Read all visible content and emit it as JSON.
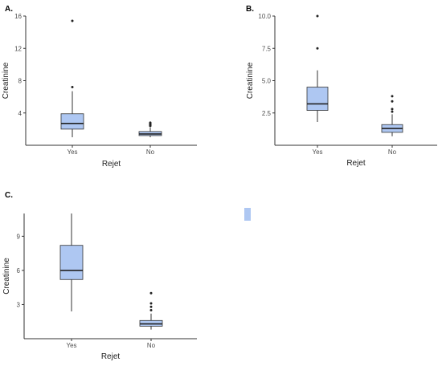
{
  "panels": [
    {
      "label": "A."
    },
    {
      "label": "B."
    },
    {
      "label": "C."
    }
  ],
  "legend": {
    "fill_color": "#aec7f2"
  },
  "chart_data": [
    {
      "type": "box",
      "xlabel": "Rejet",
      "ylabel": "Creatinine",
      "categories": [
        "Yes",
        "No"
      ],
      "yticks": [
        4,
        8,
        12,
        16
      ],
      "ytick_labels": [
        "4",
        "8",
        "12",
        "16"
      ],
      "ylim": [
        0,
        16
      ],
      "fill_color": "#aec7f2",
      "grid": false,
      "boxes": [
        {
          "category": "Yes",
          "min": 1.0,
          "q1": 2.0,
          "median": 2.7,
          "q3": 3.9,
          "max": 6.7,
          "outliers": [
            7.2,
            15.4
          ]
        },
        {
          "category": "No",
          "min": 1.0,
          "q1": 1.2,
          "median": 1.4,
          "q3": 1.7,
          "max": 2.2,
          "outliers": [
            2.4,
            2.5,
            2.6,
            2.7,
            2.8
          ]
        }
      ]
    },
    {
      "type": "box",
      "xlabel": "Rejet",
      "ylabel": "Creatinine",
      "categories": [
        "Yes",
        "No"
      ],
      "yticks": [
        2.5,
        5.0,
        7.5,
        10.0
      ],
      "ytick_labels": [
        "2.5",
        "5.0",
        "7.5",
        "10.0"
      ],
      "ylim": [
        0,
        10
      ],
      "fill_color": "#aec7f2",
      "grid": false,
      "boxes": [
        {
          "category": "Yes",
          "min": 1.8,
          "q1": 2.7,
          "median": 3.2,
          "q3": 4.5,
          "max": 5.8,
          "outliers": [
            7.5,
            10.0
          ]
        },
        {
          "category": "No",
          "min": 0.7,
          "q1": 1.0,
          "median": 1.3,
          "q3": 1.6,
          "max": 2.4,
          "outliers": [
            2.6,
            2.8,
            3.4,
            3.8
          ]
        }
      ]
    },
    {
      "type": "box",
      "xlabel": "Rejet",
      "ylabel": "Creatinine",
      "categories": [
        "Yes",
        "No"
      ],
      "yticks": [
        3,
        6,
        9
      ],
      "ytick_labels": [
        "3",
        "6",
        "9"
      ],
      "ylim": [
        0,
        11
      ],
      "fill_color": "#aec7f2",
      "grid": false,
      "boxes": [
        {
          "category": "Yes",
          "min": 2.4,
          "q1": 5.2,
          "median": 6.0,
          "q3": 8.2,
          "max": 11.0,
          "outliers": []
        },
        {
          "category": "No",
          "min": 0.8,
          "q1": 1.1,
          "median": 1.3,
          "q3": 1.6,
          "max": 2.2,
          "outliers": [
            2.5,
            2.8,
            3.1,
            4.0
          ]
        }
      ]
    }
  ]
}
